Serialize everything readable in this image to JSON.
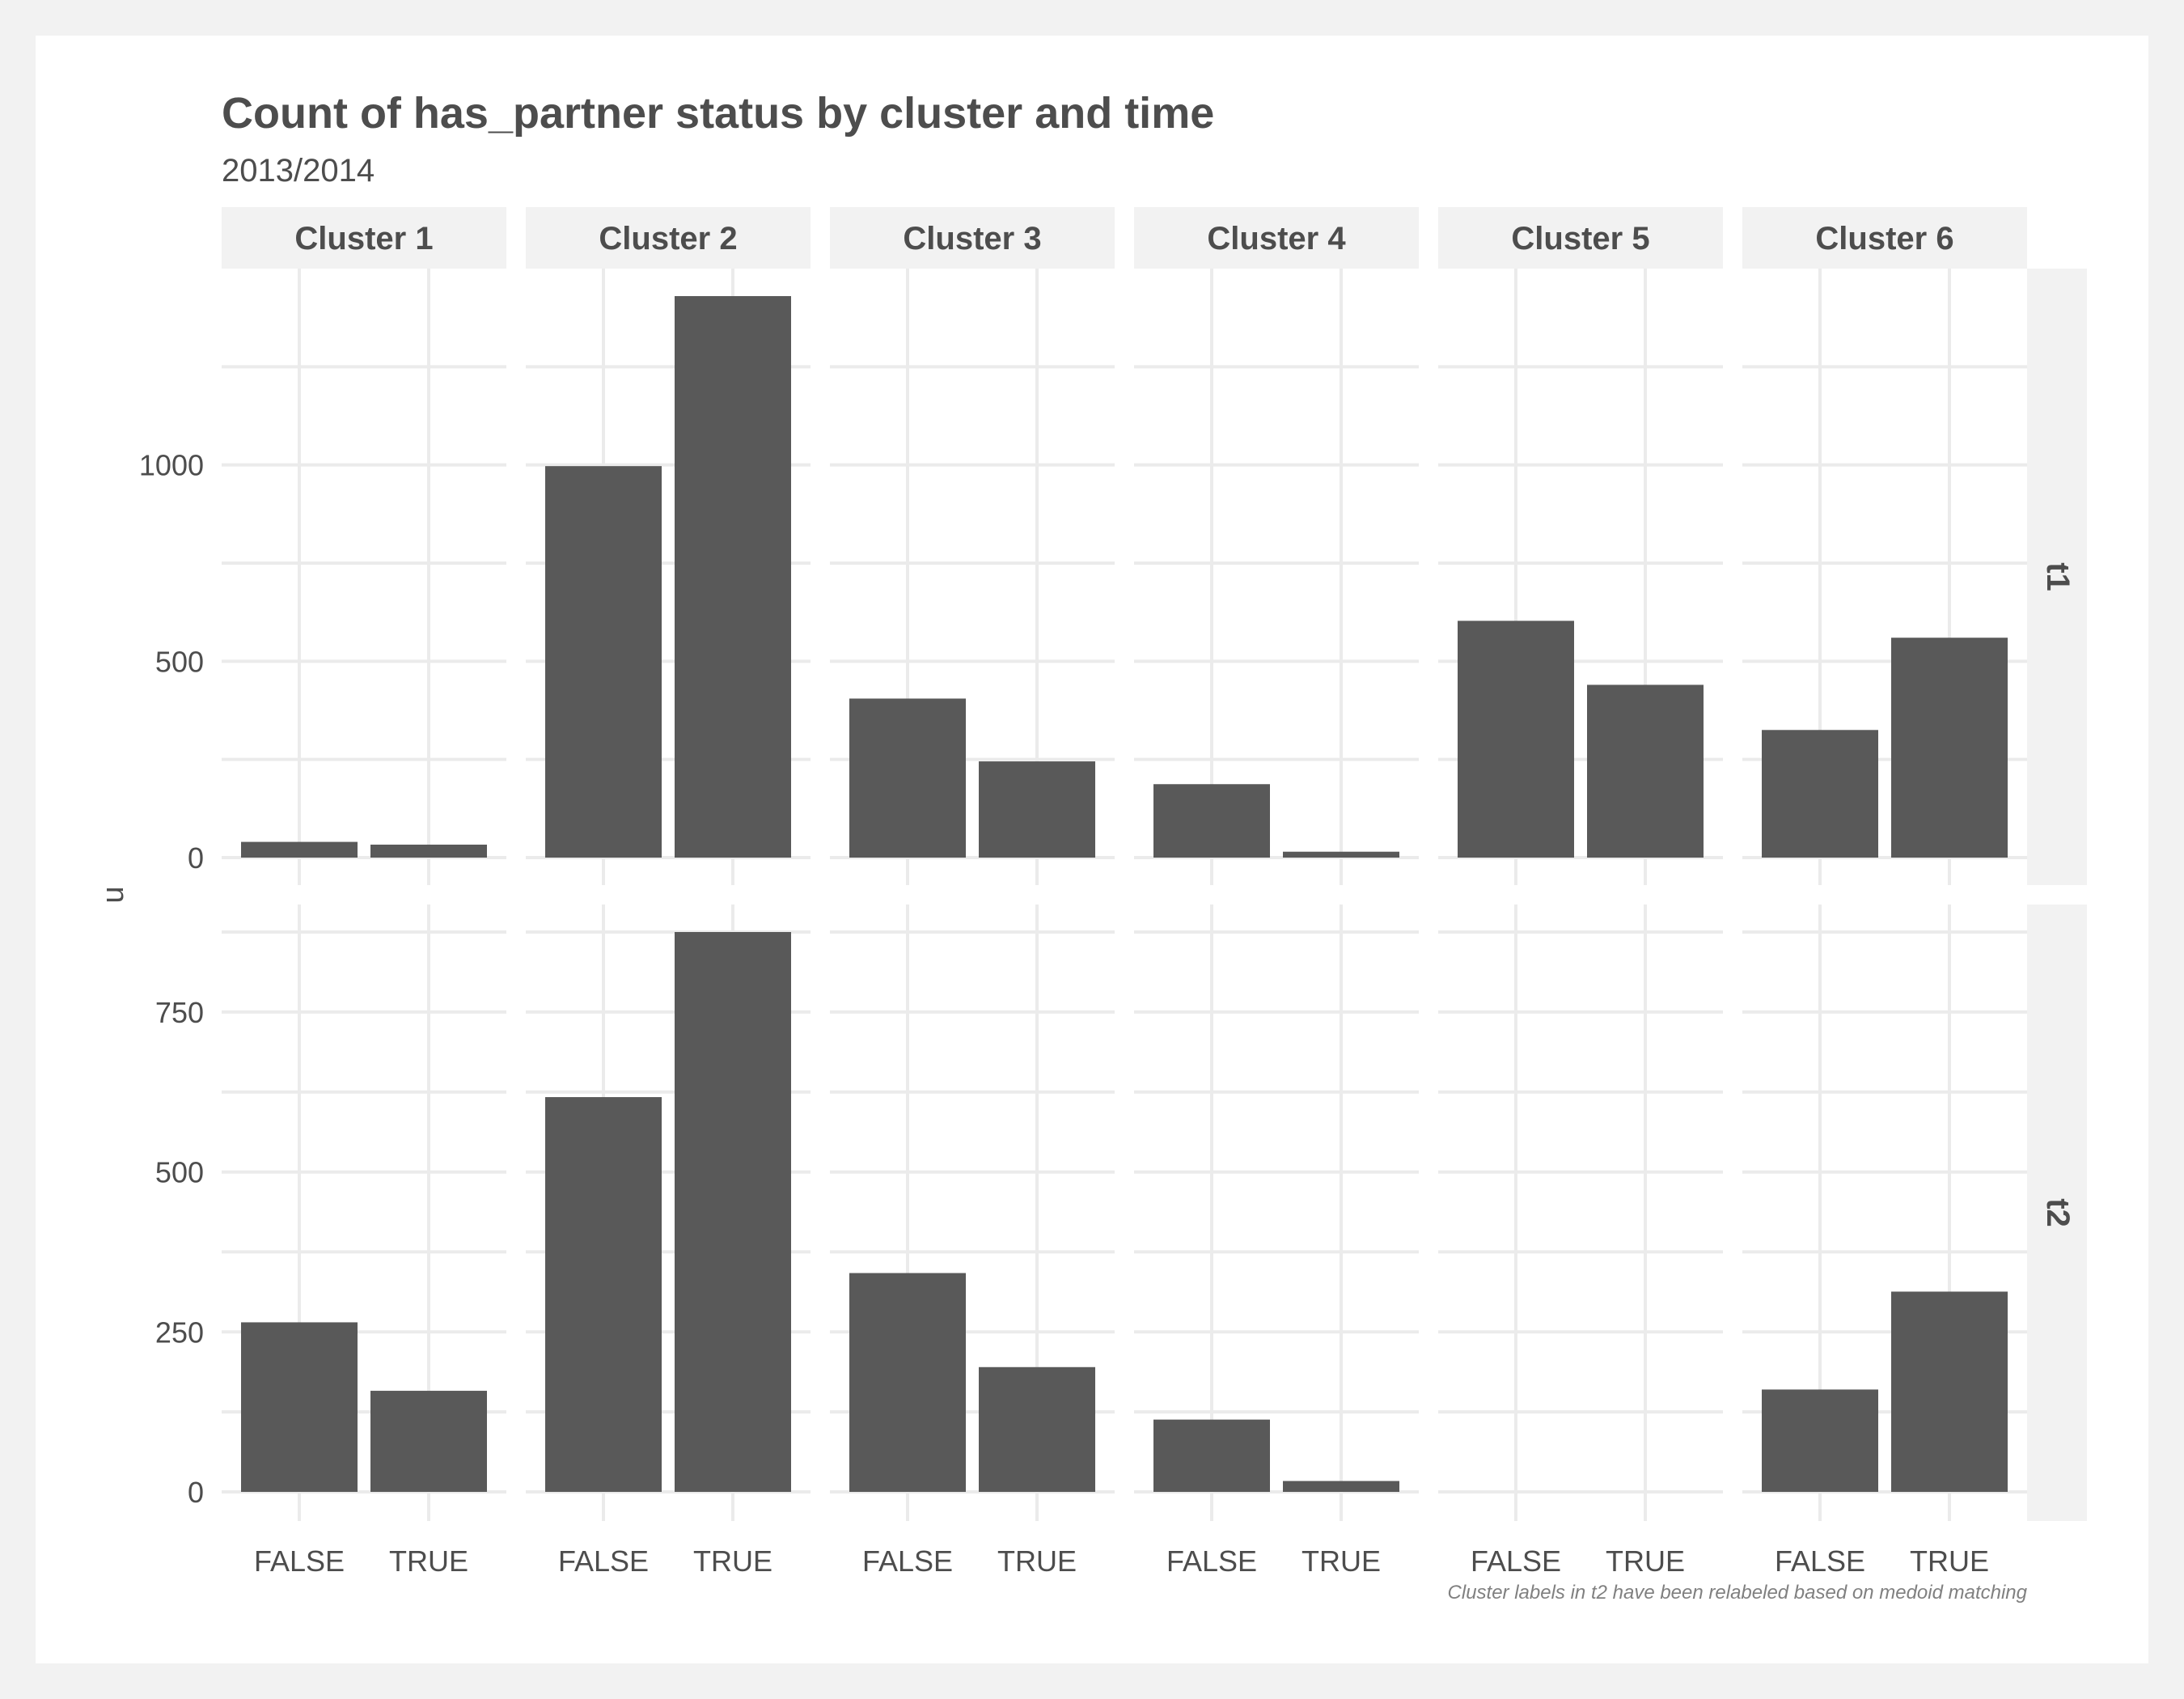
{
  "chart_data": {
    "type": "bar",
    "title": "Count of has_partner status by cluster and time",
    "subtitle": "2013/2014",
    "ylabel": "n",
    "xlabel": "",
    "caption": "Cluster labels in t2 have been relabeled based on medoid matching",
    "categories": [
      "FALSE",
      "TRUE"
    ],
    "facet_columns": [
      "Cluster 1",
      "Cluster 2",
      "Cluster 3",
      "Cluster 4",
      "Cluster 5",
      "Cluster 6"
    ],
    "bar_color": "#595959",
    "grid": true,
    "legend": "none",
    "rows": [
      {
        "label": "t1",
        "ylim": [
          0,
          1430
        ],
        "y_ticks": [
          0,
          500,
          1000
        ],
        "values": [
          [
            40,
            33
          ],
          [
            997,
            1430
          ],
          [
            405,
            245
          ],
          [
            187,
            15
          ],
          [
            603,
            440
          ],
          [
            325,
            560
          ]
        ]
      },
      {
        "label": "t2",
        "ylim": [
          0,
          875
        ],
        "y_ticks": [
          0,
          250,
          500,
          750
        ],
        "values": [
          [
            265,
            158
          ],
          [
            617,
            875
          ],
          [
            342,
            195
          ],
          [
            113,
            17
          ],
          [
            0,
            0
          ],
          [
            160,
            313
          ]
        ]
      }
    ]
  }
}
